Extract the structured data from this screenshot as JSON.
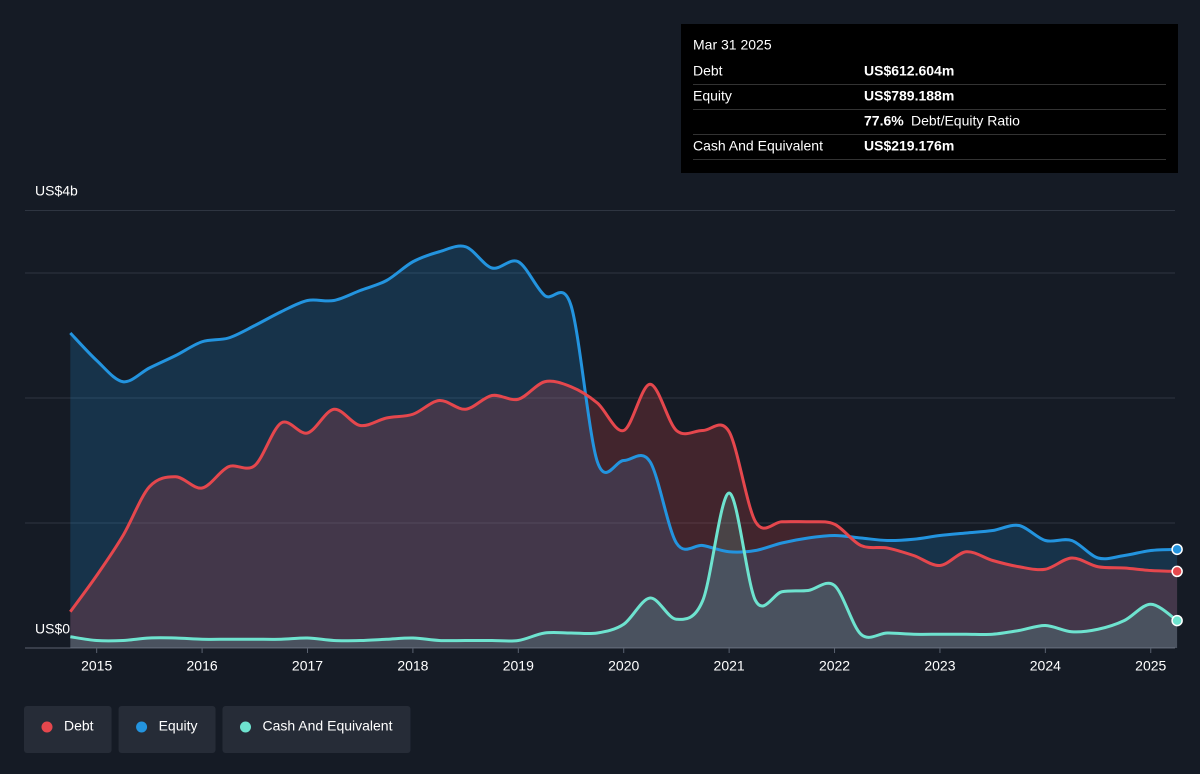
{
  "chart_data": {
    "type": "line",
    "y_top_label": "US$4b",
    "x": [
      2014.75,
      2015,
      2015.25,
      2015.5,
      2015.75,
      2016,
      2016.25,
      2016.5,
      2016.75,
      2017,
      2017.25,
      2017.5,
      2017.75,
      2018,
      2018.25,
      2018.5,
      2018.75,
      2019,
      2019.25,
      2019.5,
      2019.75,
      2020,
      2020.25,
      2020.5,
      2020.75,
      2021,
      2021.25,
      2021.5,
      2021.75,
      2022,
      2022.25,
      2022.5,
      2022.75,
      2023,
      2023.25,
      2023.5,
      2023.75,
      2024,
      2024.25,
      2024.5,
      2024.75,
      2025,
      2025.25
    ],
    "series": [
      {
        "name": "Debt",
        "color": "#e5474d",
        "values": [
          0.29,
          0.58,
          0.9,
          1.29,
          1.37,
          1.28,
          1.45,
          1.46,
          1.8,
          1.72,
          1.91,
          1.78,
          1.84,
          1.87,
          1.98,
          1.91,
          2.02,
          1.99,
          2.13,
          2.09,
          1.96,
          1.74,
          2.11,
          1.74,
          1.74,
          1.73,
          1.01,
          1.01,
          1.01,
          0.99,
          0.82,
          0.8,
          0.74,
          0.66,
          0.77,
          0.7,
          0.65,
          0.63,
          0.72,
          0.65,
          0.64,
          0.62,
          0.612604
        ]
      },
      {
        "name": "Equity",
        "color": "#2394df",
        "values": [
          2.52,
          2.3,
          2.13,
          2.24,
          2.34,
          2.45,
          2.48,
          2.58,
          2.69,
          2.78,
          2.78,
          2.86,
          2.94,
          3.09,
          3.17,
          3.21,
          3.04,
          3.09,
          2.82,
          2.74,
          1.49,
          1.5,
          1.49,
          0.84,
          0.82,
          0.77,
          0.78,
          0.84,
          0.88,
          0.9,
          0.88,
          0.86,
          0.87,
          0.9,
          0.92,
          0.94,
          0.98,
          0.86,
          0.86,
          0.72,
          0.74,
          0.78,
          0.789188
        ]
      },
      {
        "name": "Cash And Equivalent",
        "color": "#6ee3cf",
        "values": [
          0.09,
          0.06,
          0.06,
          0.08,
          0.08,
          0.07,
          0.07,
          0.07,
          0.07,
          0.08,
          0.06,
          0.06,
          0.07,
          0.08,
          0.06,
          0.06,
          0.06,
          0.06,
          0.12,
          0.12,
          0.12,
          0.19,
          0.4,
          0.23,
          0.38,
          1.24,
          0.38,
          0.45,
          0.46,
          0.5,
          0.11,
          0.12,
          0.11,
          0.11,
          0.11,
          0.11,
          0.14,
          0.18,
          0.13,
          0.15,
          0.22,
          0.35,
          0.219176
        ]
      }
    ],
    "xlim": [
      2014.32,
      2025.23
    ],
    "xticks": [
      2015,
      2016,
      2017,
      2018,
      2019,
      2020,
      2021,
      2022,
      2023,
      2024,
      2025
    ],
    "ylim": [
      0,
      3.5
    ],
    "yticks": [
      {
        "value": 0,
        "label": "US$0"
      },
      1,
      2,
      3,
      3.5
    ],
    "grid": true,
    "tooltip": {
      "date": "Mar 31 2025",
      "rows": [
        [
          "Debt",
          "US$612.604m"
        ],
        [
          "Equity",
          "US$789.188m"
        ],
        [
          "77.6%",
          "Debt/Equity Ratio"
        ],
        [
          "Cash And Equivalent",
          "US$219.176m"
        ]
      ]
    }
  }
}
